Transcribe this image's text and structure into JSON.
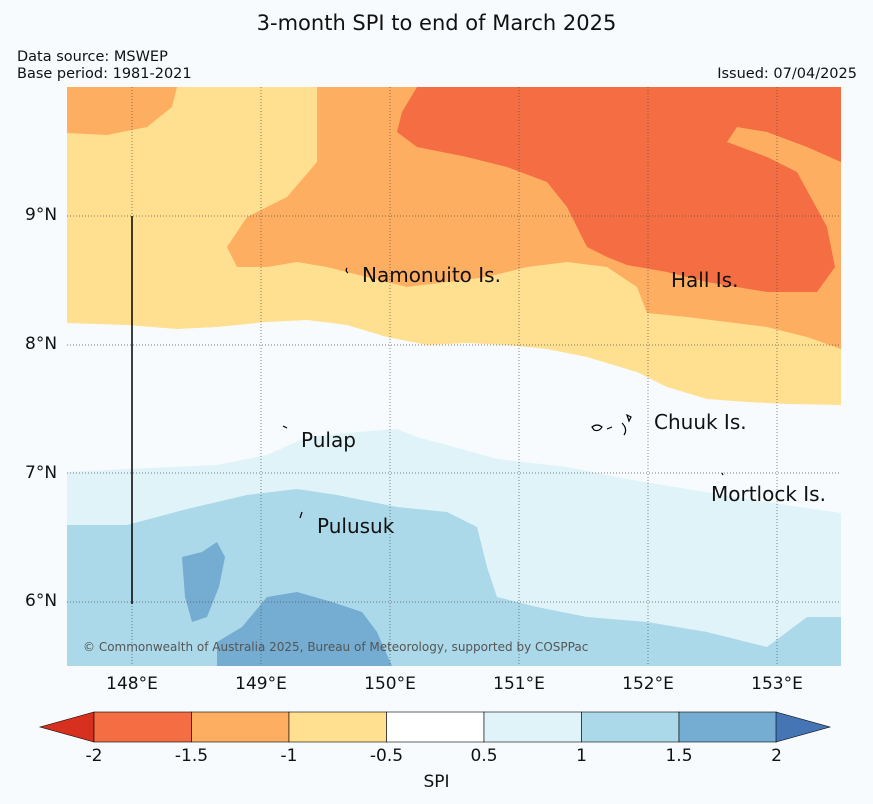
{
  "title": "3-month SPI to end of March 2025",
  "data_source": "Data source: MSWEP",
  "base_period": "Base period: 1981-2021",
  "issued": "Issued: 07/04/2025",
  "credit": "© Commonwealth of Australia 2025, Bureau of Meteorology, supported by COSPPac",
  "lat_labels": [
    "9°N",
    "8°N",
    "7°N",
    "6°N"
  ],
  "lon_labels": [
    "148°E",
    "149°E",
    "150°E",
    "151°E",
    "152°E",
    "153°E"
  ],
  "places": [
    "Namonuito Is.",
    "Hall Is.",
    "Chuuk Is.",
    "Pulap",
    "Mortlock Is.",
    "Pulusuk"
  ],
  "colorbar": {
    "label": "SPI",
    "ticks": [
      "-2",
      "-1.5",
      "-1",
      "-0.5",
      "0.5",
      "1",
      "1.5",
      "2"
    ],
    "colors": [
      "#d7301f",
      "#f46d43",
      "#fdae61",
      "#fee090",
      "#ffffff",
      "#e0f3f8",
      "#abd9e9",
      "#74add1",
      "#4575b4"
    ]
  }
}
